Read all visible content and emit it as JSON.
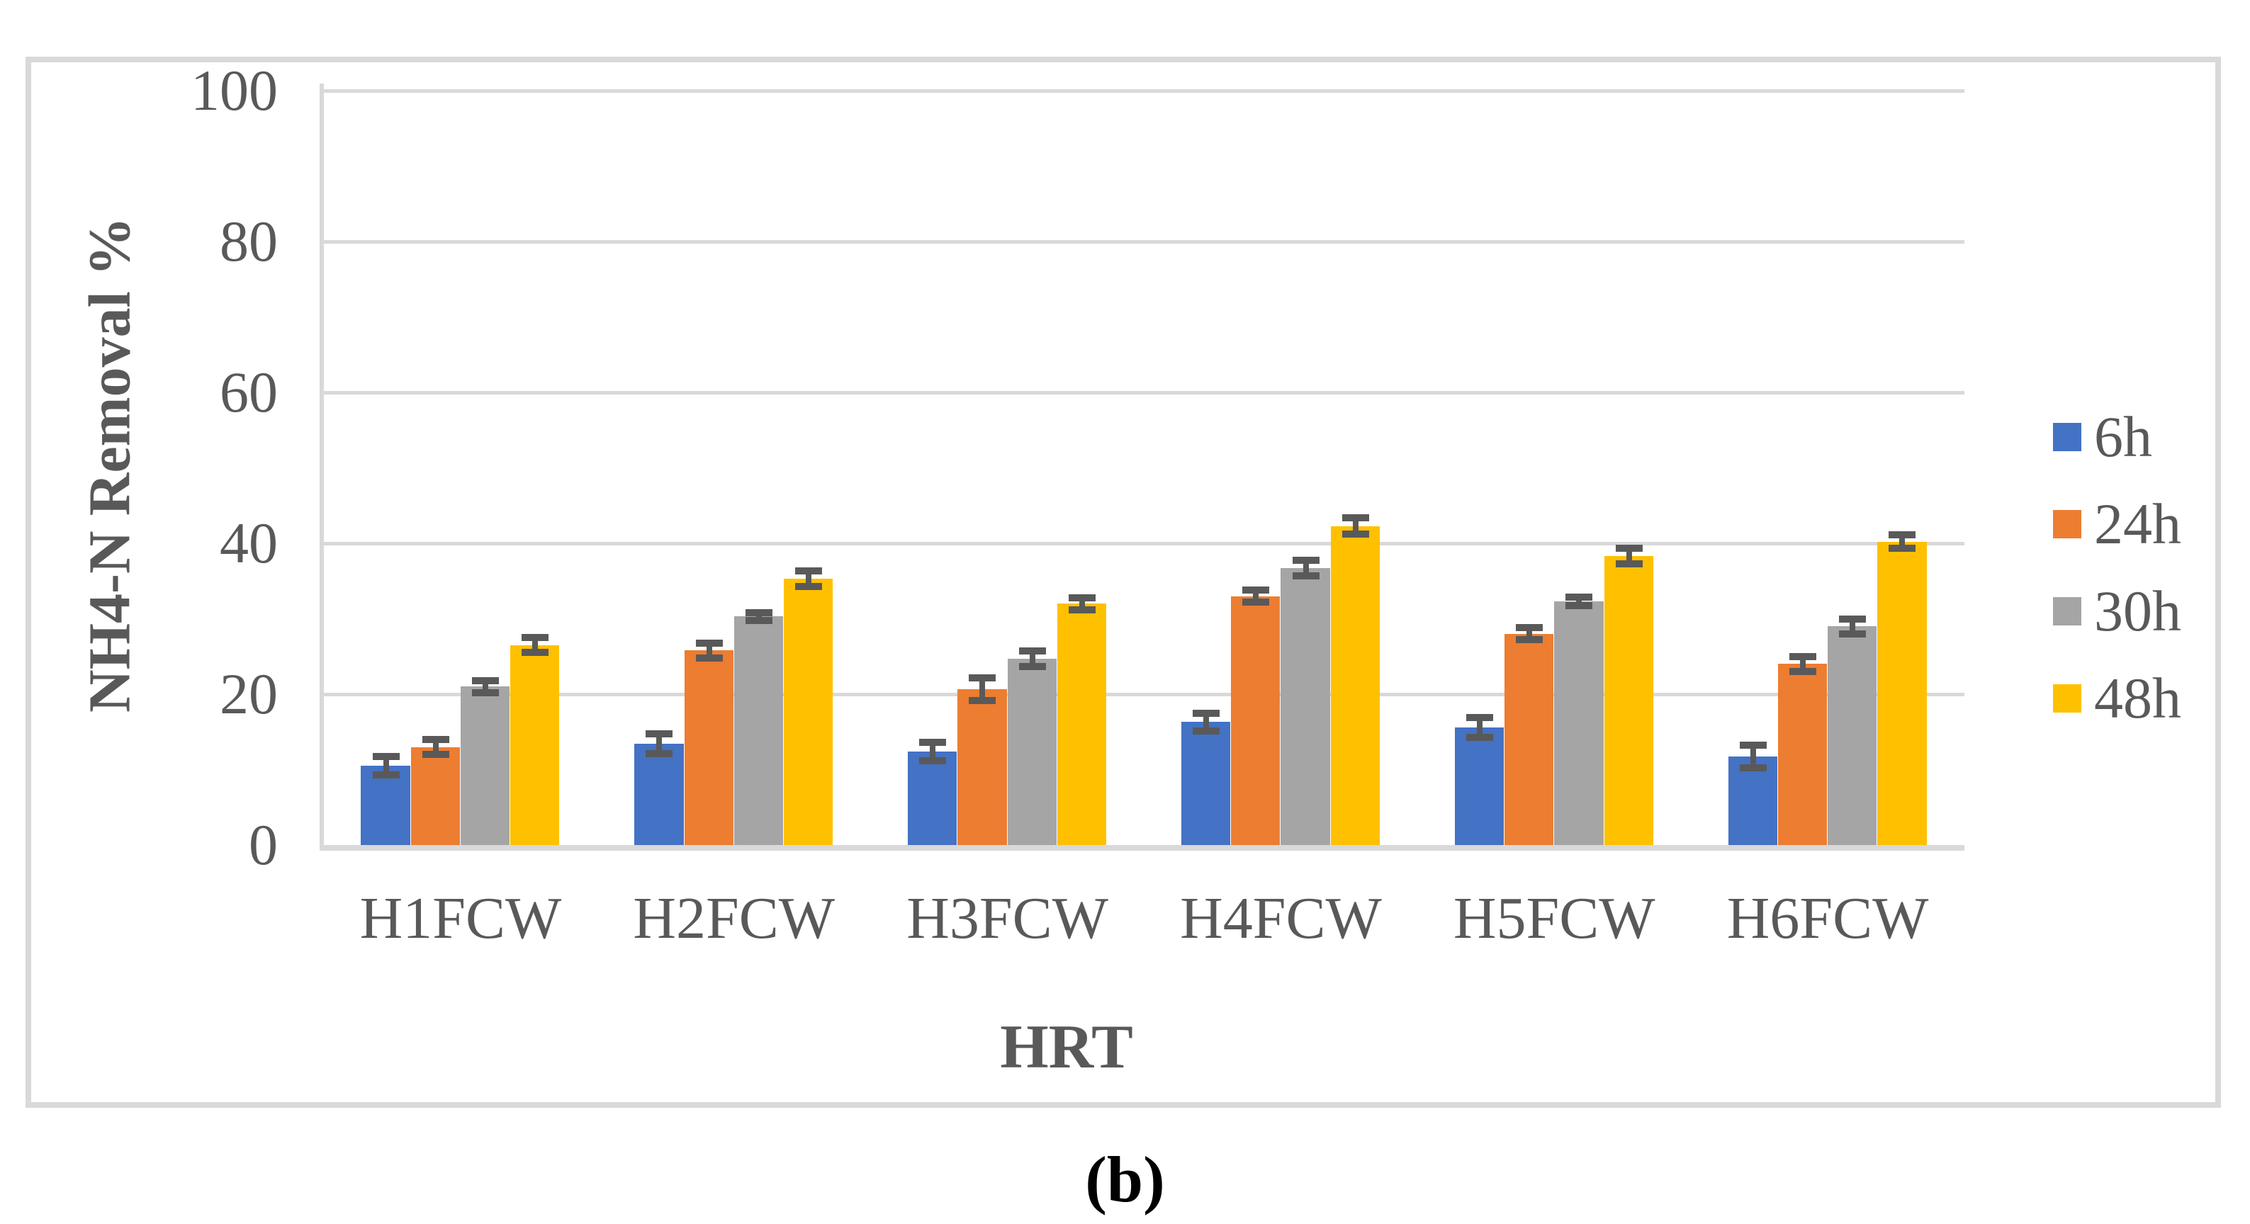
{
  "figure": {
    "caption": "(b)",
    "frame_border_color": "#d9d9d9",
    "background_color": "#ffffff",
    "text_color": "#595959"
  },
  "chart_data": {
    "type": "bar",
    "title": "",
    "xlabel": "HRT",
    "ylabel": "NH4-N Removal %",
    "ylim": [
      0,
      100
    ],
    "yticks": [
      0,
      20,
      40,
      60,
      80,
      100
    ],
    "grid": "horizontal",
    "gridline_color": "#d9d9d9",
    "axis_line_color": "#d9d9d9",
    "legend_position": "right",
    "error_bars": true,
    "error_bar_color": "#595959",
    "categories": [
      "H1FCW",
      "H2FCW",
      "H3FCW",
      "H4FCW",
      "H5FCW",
      "H6FCW"
    ],
    "series": [
      {
        "name": "6h",
        "color": "#4472C4",
        "values": [
          10.5,
          13.4,
          12.4,
          16.3,
          15.6,
          11.7
        ],
        "errors": [
          1.2,
          1.3,
          1.2,
          1.2,
          1.3,
          1.5
        ]
      },
      {
        "name": "24h",
        "color": "#ED7D31",
        "values": [
          13.0,
          25.8,
          20.7,
          33.0,
          28.0,
          24.0
        ],
        "errors": [
          1.0,
          1.0,
          1.5,
          0.8,
          0.8,
          1.0
        ]
      },
      {
        "name": "30h",
        "color": "#A5A5A5",
        "values": [
          21.0,
          30.3,
          24.7,
          36.7,
          32.3,
          29.0
        ],
        "errors": [
          0.8,
          0.5,
          1.0,
          1.0,
          0.6,
          1.0
        ]
      },
      {
        "name": "48h",
        "color": "#FFC000",
        "values": [
          26.5,
          35.3,
          32.0,
          42.3,
          38.3,
          40.2
        ],
        "errors": [
          1.0,
          1.0,
          0.8,
          1.1,
          1.0,
          0.9
        ]
      }
    ]
  }
}
